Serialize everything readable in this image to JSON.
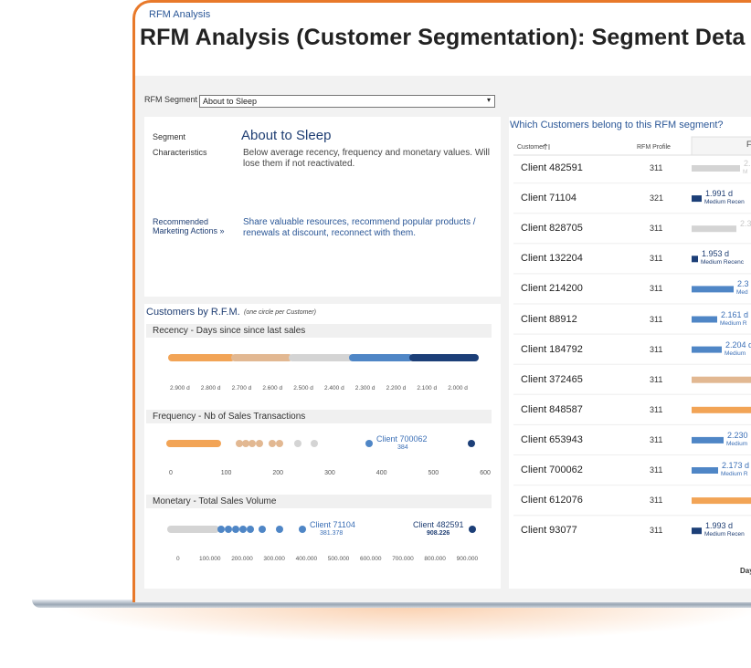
{
  "breadcrumb": "RFM Analysis",
  "title": "RFM Analysis (Customer Segmentation): Segment Deta",
  "filter": {
    "label": "RFM Segment",
    "value": "About to Sleep"
  },
  "segment": {
    "label": "Segment",
    "name": "About to Sleep",
    "characteristics_label": "Characteristics",
    "characteristics": "Below average recency, frequency and monetary values. Will lose them if not reactivated.",
    "actions_label": "Recommended Marketing Actions »",
    "actions": "Share valuable resources, recommend popular products / renewals at discount, reconnect with them."
  },
  "rfm_panel": {
    "title": "Customers by R.F.M.",
    "note": "(one circle per Customer)",
    "recency": {
      "title": "Recency - Days since since last sales",
      "ticks": [
        "2.900 d",
        "2.800 d",
        "2.700 d",
        "2.600 d",
        "2.500 d",
        "2.400 d",
        "2.300 d",
        "2.200 d",
        "2.100 d",
        "2.000 d"
      ]
    },
    "frequency": {
      "title": "Frequency - Nb of Sales Transactions",
      "ticks": [
        0,
        100,
        200,
        300,
        400,
        500,
        600
      ],
      "annotations": [
        {
          "label": "Client 700062",
          "value": 384
        }
      ]
    },
    "monetary": {
      "title": "Monetary - Total Sales Volume",
      "ticks": [
        "0",
        "100.000",
        "200.000",
        "300.000",
        "400.000",
        "500.000",
        "600.000",
        "700.000",
        "800.000",
        "900.000"
      ],
      "annotations": [
        {
          "label": "Client 71104",
          "value": "381.378"
        },
        {
          "label": "Client 482591",
          "value": "908.226"
        }
      ]
    }
  },
  "customers": {
    "title": "Which Customers belong to this RFM segment?",
    "columns": [
      "Customer",
      "RFM Profile",
      "F"
    ],
    "rows": [
      {
        "customer": "Client 482591",
        "profile": 311,
        "label": "2.",
        "sublabel": "M"
      },
      {
        "customer": "Client 71104",
        "profile": 321,
        "label": "1.991 d",
        "sublabel": "Medium Recen"
      },
      {
        "customer": "Client 828705",
        "profile": 311,
        "label": "2.3"
      },
      {
        "customer": "Client 132204",
        "profile": 311,
        "label": "1.953 d",
        "sublabel": "Medium Recenc"
      },
      {
        "customer": "Client 214200",
        "profile": 311,
        "label": "2.3",
        "sublabel": "Med"
      },
      {
        "customer": "Client 88912",
        "profile": 311,
        "label": "2.161 d",
        "sublabel": "Medium R"
      },
      {
        "customer": "Client 184792",
        "profile": 311,
        "label": "2.204 d",
        "sublabel": "Medium"
      },
      {
        "customer": "Client 372465",
        "profile": 311
      },
      {
        "customer": "Client 848587",
        "profile": 311
      },
      {
        "customer": "Client 653943",
        "profile": 311,
        "label": "2.230",
        "sublabel": "Medium"
      },
      {
        "customer": "Client 700062",
        "profile": 311,
        "label": "2.173 d",
        "sublabel": "Medium R"
      },
      {
        "customer": "Client 612076",
        "profile": 311
      },
      {
        "customer": "Client 93077",
        "profile": 311,
        "label": "1.993 d",
        "sublabel": "Medium Recen"
      }
    ],
    "footer": "Day"
  }
}
